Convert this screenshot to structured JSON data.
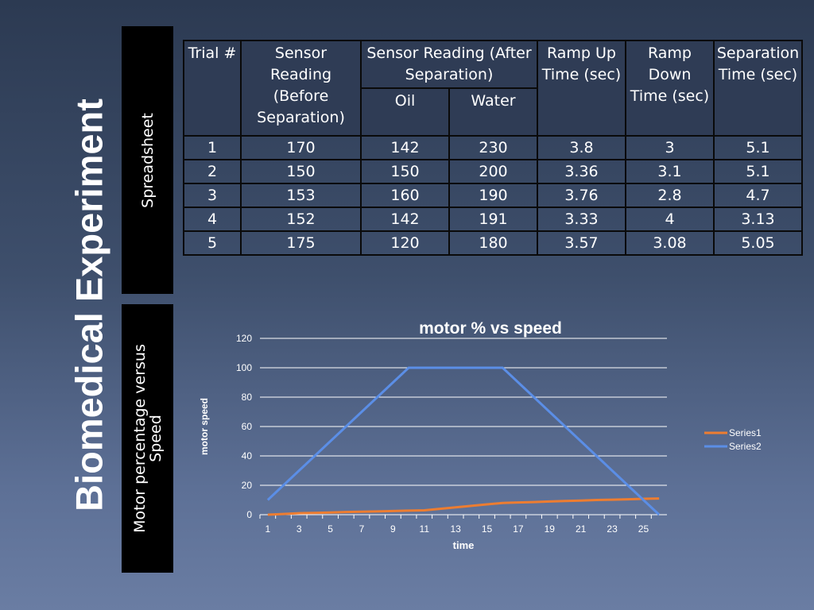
{
  "slide": {
    "title": "Biomedical Experiment",
    "side_labels": {
      "spreadsheet": "Spreadsheet",
      "motor": "Motor percentage versus Speed"
    }
  },
  "table": {
    "headers": {
      "trial": "Trial #",
      "before": "Sensor Reading (Before Separation)",
      "after": "Sensor Reading (After Separation)",
      "oil": "Oil",
      "water": "Water",
      "ramp_up": "Ramp Up Time (sec)",
      "ramp_down": "Ramp Down Time (sec)",
      "separation": "Separation Time (sec)"
    },
    "rows": [
      [
        "1",
        "170",
        "142",
        "230",
        "3.8",
        "3",
        "5.1"
      ],
      [
        "2",
        "150",
        "150",
        "200",
        "3.36",
        "3.1",
        "5.1"
      ],
      [
        "3",
        "153",
        "160",
        "190",
        "3.76",
        "2.8",
        "4.7"
      ],
      [
        "4",
        "152",
        "142",
        "191",
        "3.33",
        "4",
        "3.13"
      ],
      [
        "5",
        "175",
        "120",
        "180",
        "3.57",
        "3.08",
        "5.05"
      ]
    ]
  },
  "colors": {
    "series1": "#ed7d31",
    "series2": "#5b8ee6",
    "grid": "#ffffff"
  },
  "chart_data": {
    "type": "line",
    "title": "motor % vs speed",
    "xlabel": "time",
    "ylabel": "motor speed",
    "x": [
      1,
      2,
      3,
      4,
      5,
      6,
      7,
      8,
      9,
      10,
      11,
      12,
      13,
      14,
      15,
      16,
      17,
      18,
      19,
      20,
      21,
      22,
      23,
      24,
      25,
      26
    ],
    "x_tick_labels": [
      "1",
      "3",
      "5",
      "7",
      "9",
      "11",
      "13",
      "15",
      "17",
      "19",
      "21",
      "23",
      "25"
    ],
    "ylim": [
      0,
      120
    ],
    "y_ticks": [
      0,
      20,
      40,
      60,
      80,
      100,
      120
    ],
    "grid": true,
    "legend": "right",
    "series": [
      {
        "name": "Series1",
        "values": [
          0,
          0.5,
          1,
          1.2,
          1.5,
          1.8,
          2,
          2.2,
          2.5,
          2.8,
          3,
          4,
          5,
          6,
          7,
          8,
          8.3,
          8.6,
          9,
          9.3,
          9.6,
          10,
          10.2,
          10.5,
          10.8,
          11
        ]
      },
      {
        "name": "Series2",
        "values": [
          10,
          20,
          30,
          40,
          50,
          60,
          70,
          80,
          90,
          100,
          100,
          100,
          100,
          100,
          100,
          100,
          90,
          80,
          70,
          60,
          50,
          40,
          30,
          20,
          10,
          0
        ]
      }
    ]
  }
}
